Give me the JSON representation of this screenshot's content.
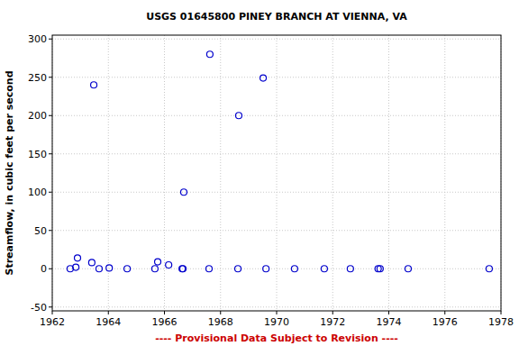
{
  "chart_data": {
    "type": "scatter",
    "title": "USGS 01645800 PINEY BRANCH AT VIENNA, VA",
    "y_label": "Streamflow, in cubic feet per second",
    "annotations": [
      "---- Provisional Data Subject to Revision ----"
    ],
    "x": [
      1962.64,
      1962.84,
      1962.9,
      1963.41,
      1963.48,
      1963.67,
      1964.03,
      1964.67,
      1965.66,
      1965.76,
      1966.15,
      1966.63,
      1966.66,
      1966.69,
      1967.59,
      1967.62,
      1968.62,
      1968.65,
      1969.52,
      1969.62,
      1970.64,
      1971.7,
      1972.63,
      1973.62,
      1973.69,
      1974.69,
      1977.58
    ],
    "values": [
      0,
      2,
      14,
      8,
      240,
      0,
      1,
      0,
      0,
      9,
      5,
      0,
      0,
      100,
      0,
      280,
      0,
      200,
      249,
      0,
      0,
      0,
      0,
      0,
      0,
      0,
      0
    ],
    "color": "#0000cc",
    "marker": "circle",
    "xlim": [
      1962,
      1978
    ],
    "xticks": [
      1962,
      1964,
      1966,
      1968,
      1970,
      1972,
      1974,
      1976,
      1978
    ],
    "ylim": [
      -55,
      305
    ],
    "yticks": [
      -50,
      0,
      50,
      100,
      150,
      200,
      250,
      300
    ],
    "grid": true
  }
}
